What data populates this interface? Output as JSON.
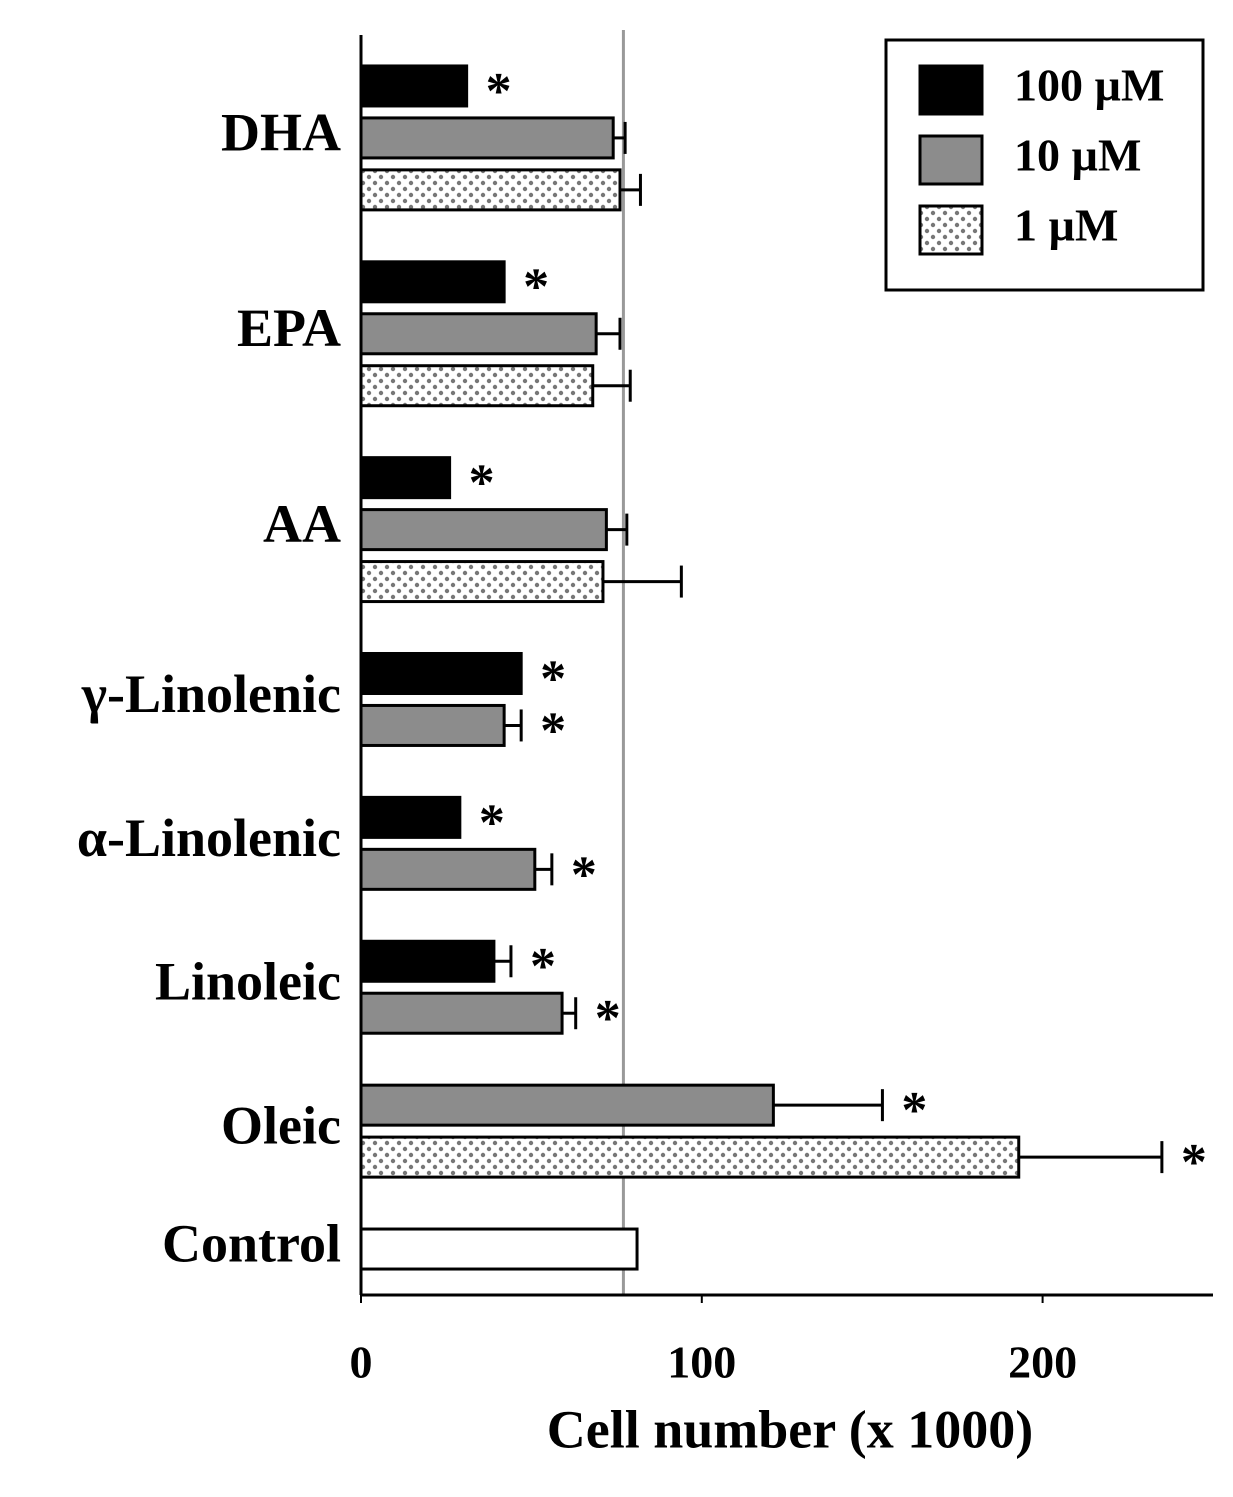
{
  "chart_data": {
    "type": "hbar",
    "x_label": "Cell number  (x 1000)",
    "categories": [
      "DHA",
      "EPA",
      "AA",
      "γ-Linolenic",
      "α-Linolenic",
      "Linoleic",
      "Oleic",
      "Control"
    ],
    "series": [
      {
        "name": "100 µM",
        "color": "#000000",
        "values": [
          31,
          42,
          26,
          47,
          29,
          39,
          null,
          null
        ],
        "errors": [
          null,
          null,
          null,
          null,
          null,
          5,
          null,
          null
        ],
        "significance": [
          "*",
          "*",
          "*",
          "*",
          "*",
          "*",
          null,
          null
        ]
      },
      {
        "name": "10 µM",
        "color": "#8c8c8c",
        "values": [
          74,
          69,
          72,
          42,
          51,
          59,
          121,
          null
        ],
        "errors": [
          3.5,
          7,
          6,
          5,
          5,
          4,
          32,
          null
        ],
        "significance": [
          null,
          null,
          null,
          "*",
          "*",
          "*",
          "*",
          null
        ]
      },
      {
        "name": "1 µM",
        "color": "#ffffff",
        "hatch": "dots",
        "values": [
          76,
          68,
          71,
          null,
          null,
          null,
          193,
          null
        ],
        "errors": [
          6,
          11,
          23,
          null,
          null,
          null,
          42,
          null
        ],
        "significance": [
          null,
          null,
          null,
          null,
          null,
          null,
          "*",
          null
        ]
      },
      {
        "color": "#ffffff",
        "values": [
          null,
          null,
          null,
          null,
          null,
          null,
          null,
          81
        ]
      }
    ],
    "reference_line": 77,
    "xlim": [
      0,
      250
    ],
    "xticks": [
      0,
      100,
      200
    ],
    "grid": false,
    "legend": "upper right"
  }
}
